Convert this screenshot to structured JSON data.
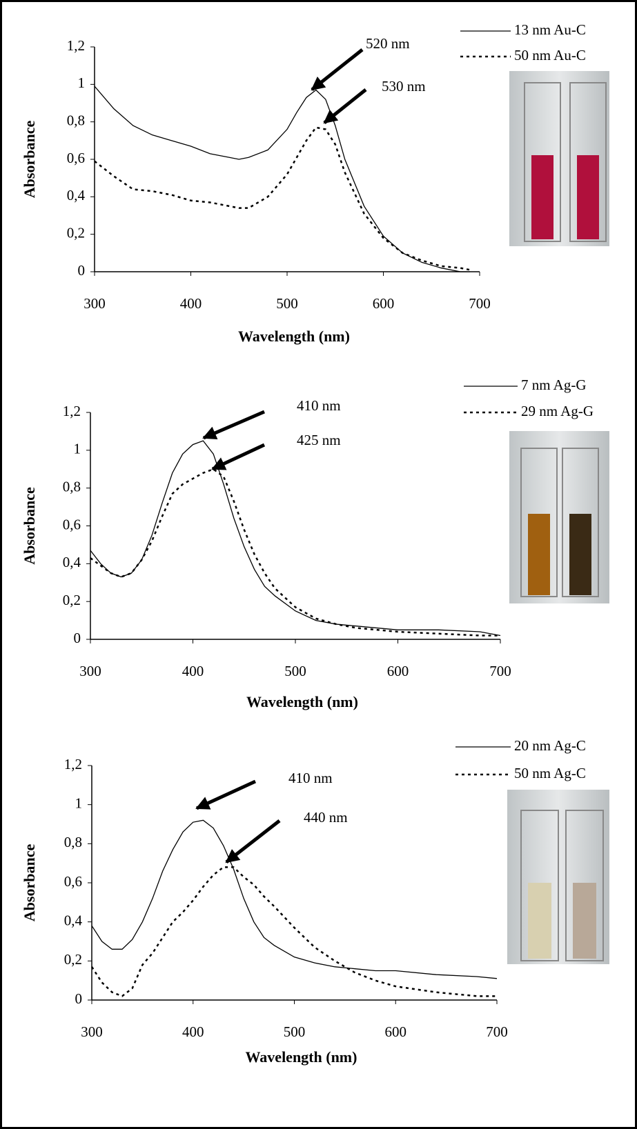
{
  "chart_data": [
    {
      "type": "line",
      "xlabel": "Wavelength (nm)",
      "ylabel": "Absorbance",
      "x": [
        300,
        320,
        340,
        360,
        380,
        400,
        420,
        440,
        450,
        460,
        480,
        500,
        510,
        520,
        530,
        540,
        550,
        560,
        580,
        600,
        620,
        640,
        660,
        680,
        690
      ],
      "series": [
        {
          "name": "13 nm Au-C",
          "color": "#000000",
          "style": "solid",
          "values": [
            0.99,
            0.87,
            0.78,
            0.73,
            0.7,
            0.67,
            0.63,
            0.61,
            0.6,
            0.61,
            0.65,
            0.76,
            0.85,
            0.93,
            0.97,
            0.92,
            0.78,
            0.6,
            0.35,
            0.19,
            0.1,
            0.05,
            0.02,
            0,
            0
          ]
        },
        {
          "name": "50 nm Au-C",
          "color": "#000000",
          "style": "dashed",
          "values": [
            0.59,
            0.51,
            0.44,
            0.43,
            0.41,
            0.38,
            0.37,
            0.35,
            0.34,
            0.34,
            0.4,
            0.52,
            0.61,
            0.7,
            0.77,
            0.76,
            0.68,
            0.53,
            0.31,
            0.18,
            0.1,
            0.06,
            0.03,
            0.02,
            0.01
          ]
        }
      ],
      "xlim": [
        300,
        700
      ],
      "xticks": [
        300,
        400,
        500,
        600,
        700
      ],
      "ylim": [
        0,
        1.2
      ],
      "yticks": [
        0,
        {
          "value": 0.2,
          "label": "0,2"
        },
        {
          "value": 0.4,
          "label": "0,4"
        },
        {
          "value": 0.6,
          "label": "0,6"
        },
        {
          "value": 0.8,
          "label": "0,8"
        },
        1,
        {
          "value": 1.2,
          "label": "1,2"
        }
      ],
      "annotations": [
        "520 nm",
        "530 nm"
      ]
    },
    {
      "type": "line",
      "xlabel": "Wavelength (nm)",
      "ylabel": "Absorbance",
      "x": [
        300,
        310,
        320,
        330,
        340,
        350,
        360,
        370,
        380,
        390,
        400,
        410,
        420,
        430,
        440,
        450,
        460,
        470,
        480,
        500,
        520,
        540,
        560,
        580,
        600,
        640,
        680,
        700
      ],
      "series": [
        {
          "name": "7 nm Ag-G",
          "color": "#000000",
          "style": "solid",
          "values": [
            0.47,
            0.4,
            0.35,
            0.33,
            0.35,
            0.42,
            0.55,
            0.72,
            0.88,
            0.98,
            1.03,
            1.05,
            0.98,
            0.82,
            0.64,
            0.49,
            0.37,
            0.28,
            0.23,
            0.15,
            0.1,
            0.08,
            0.07,
            0.06,
            0.05,
            0.05,
            0.04,
            0.02
          ]
        },
        {
          "name": "29 nm Ag-G",
          "color": "#000000",
          "style": "dashed",
          "values": [
            0.43,
            0.39,
            0.35,
            0.33,
            0.35,
            0.42,
            0.52,
            0.65,
            0.77,
            0.82,
            0.85,
            0.88,
            0.9,
            0.86,
            0.73,
            0.58,
            0.45,
            0.35,
            0.27,
            0.17,
            0.11,
            0.08,
            0.06,
            0.05,
            0.04,
            0.03,
            0.02,
            0.02
          ]
        }
      ],
      "xlim": [
        300,
        700
      ],
      "xticks": [
        300,
        400,
        500,
        600,
        700
      ],
      "ylim": [
        0,
        1.2
      ],
      "yticks": [
        0,
        {
          "value": 0.2,
          "label": "0,2"
        },
        {
          "value": 0.4,
          "label": "0,4"
        },
        {
          "value": 0.6,
          "label": "0,6"
        },
        {
          "value": 0.8,
          "label": "0,8"
        },
        1,
        {
          "value": 1.2,
          "label": "1,2"
        }
      ],
      "annotations": [
        "410 nm",
        "425 nm"
      ]
    },
    {
      "type": "line",
      "xlabel": "Wavelength (nm)",
      "ylabel": "Absorbance",
      "x": [
        300,
        310,
        320,
        330,
        340,
        350,
        360,
        370,
        380,
        390,
        400,
        410,
        420,
        430,
        440,
        450,
        460,
        470,
        480,
        500,
        520,
        540,
        560,
        580,
        600,
        640,
        680,
        700
      ],
      "series": [
        {
          "name": "20 nm Ag-C",
          "color": "#000000",
          "style": "solid",
          "values": [
            0.38,
            0.3,
            0.26,
            0.26,
            0.31,
            0.4,
            0.52,
            0.66,
            0.77,
            0.86,
            0.91,
            0.92,
            0.88,
            0.79,
            0.67,
            0.52,
            0.4,
            0.32,
            0.28,
            0.22,
            0.19,
            0.17,
            0.16,
            0.15,
            0.15,
            0.13,
            0.12,
            0.11
          ]
        },
        {
          "name": "50 nm Ag-C",
          "color": "#000000",
          "style": "dashed",
          "values": [
            0.17,
            0.09,
            0.04,
            0.02,
            0.06,
            0.18,
            0.24,
            0.32,
            0.4,
            0.45,
            0.51,
            0.58,
            0.64,
            0.68,
            0.68,
            0.63,
            0.59,
            0.53,
            0.48,
            0.37,
            0.27,
            0.2,
            0.14,
            0.1,
            0.07,
            0.04,
            0.02,
            0.02
          ]
        }
      ],
      "xlim": [
        300,
        700
      ],
      "xticks": [
        300,
        400,
        500,
        600,
        700
      ],
      "ylim": [
        0,
        1.2
      ],
      "yticks": [
        0,
        {
          "value": 0.2,
          "label": "0,2"
        },
        {
          "value": 0.4,
          "label": "0,4"
        },
        {
          "value": 0.6,
          "label": "0,6"
        },
        {
          "value": 0.8,
          "label": "0,8"
        },
        1,
        {
          "value": 1.2,
          "label": "1,2"
        }
      ],
      "annotations": [
        "410 nm",
        "440 nm"
      ]
    }
  ]
}
